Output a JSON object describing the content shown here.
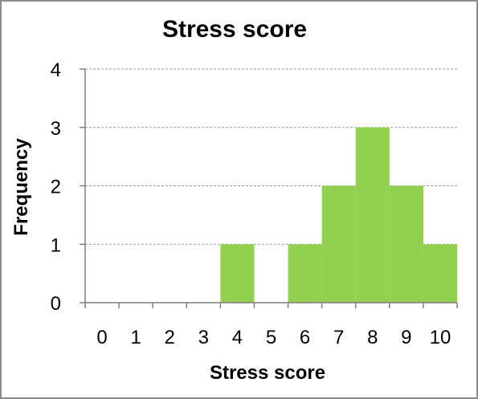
{
  "chart_data": {
    "type": "bar",
    "title": "Stress score",
    "xlabel": "Stress score",
    "ylabel": "Frequency",
    "categories": [
      "0",
      "1",
      "2",
      "3",
      "4",
      "5",
      "6",
      "7",
      "8",
      "9",
      "10"
    ],
    "values": [
      0,
      0,
      0,
      0,
      1,
      0,
      1,
      2,
      3,
      2,
      1
    ],
    "ylim": [
      0,
      4
    ],
    "yticks": [
      "0",
      "1",
      "2",
      "3",
      "4"
    ],
    "grid": true,
    "legend": "none",
    "bar_color": "#92D050"
  }
}
